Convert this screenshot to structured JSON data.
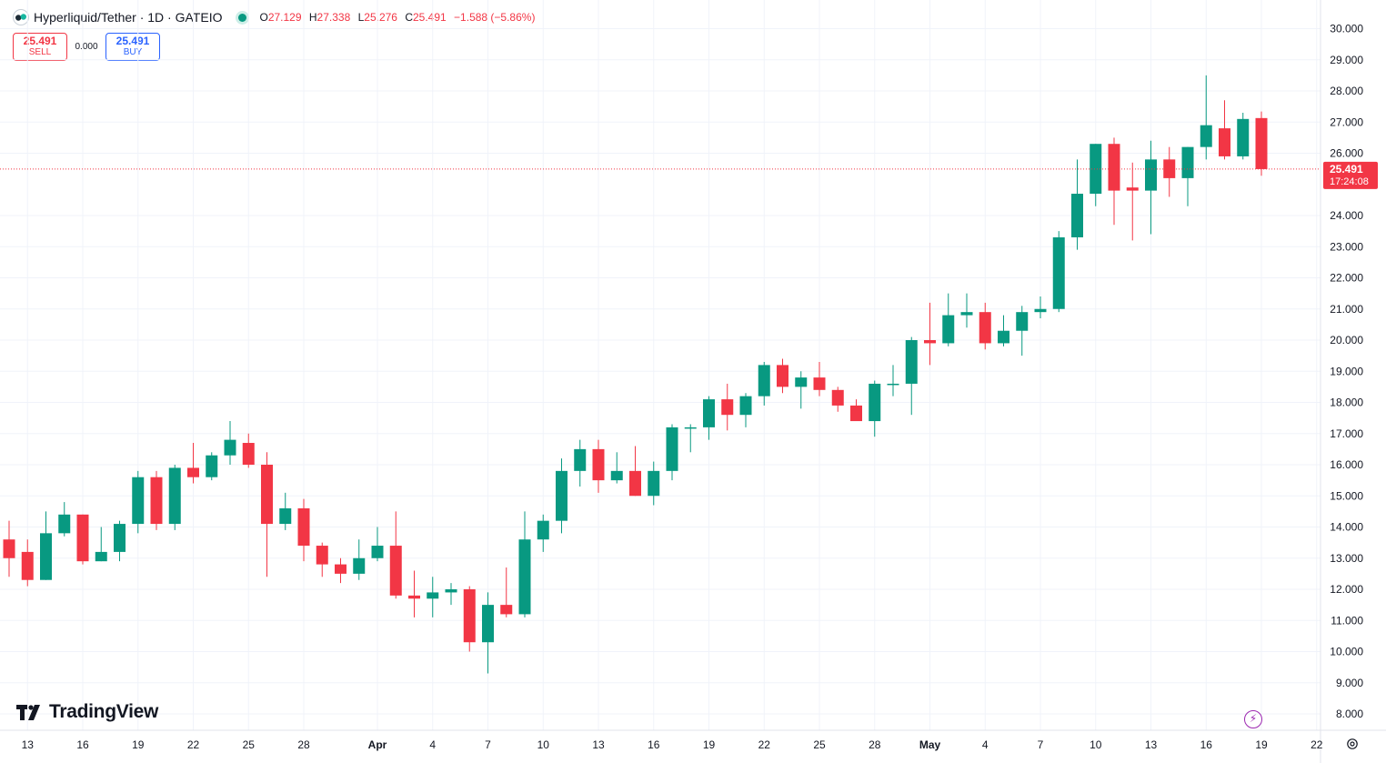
{
  "header": {
    "symbol_line": "Hyperliquid/Tether · 1D · GATEIO",
    "ohlc": [
      {
        "label": "O",
        "value": "27.129"
      },
      {
        "label": "H",
        "value": "27.338"
      },
      {
        "label": "L",
        "value": "25.276"
      },
      {
        "label": "C",
        "value": "25.491"
      }
    ],
    "change": "−1.588 (−5.86%)"
  },
  "trade": {
    "sell_price": "25.491",
    "sell_label": "SELL",
    "spread": "0.000",
    "buy_price": "25.491",
    "buy_label": "BUY"
  },
  "branding": {
    "name": "TradingView"
  },
  "colors": {
    "up": "#089981",
    "down": "#f23645",
    "grid": "#f0f3fa",
    "text": "#131722"
  },
  "chart_data": {
    "type": "candlestick",
    "title": "Hyperliquid/Tether · 1D · GATEIO",
    "ylim": [
      7.5,
      30.3
    ],
    "y_ticks": [
      "30.000",
      "29.000",
      "28.000",
      "27.000",
      "26.000",
      "24.000",
      "23.000",
      "22.000",
      "21.000",
      "20.000",
      "19.000",
      "18.000",
      "17.000",
      "16.000",
      "15.000",
      "14.000",
      "13.000",
      "12.000",
      "11.000",
      "10.000",
      "9.000",
      "8.000"
    ],
    "x_ticks": [
      "13",
      "16",
      "19",
      "22",
      "25",
      "28",
      "Apr",
      "4",
      "7",
      "10",
      "13",
      "16",
      "19",
      "22",
      "25",
      "28",
      "May",
      "4",
      "7",
      "10",
      "13",
      "16",
      "19",
      "22"
    ],
    "last_price": "25.491",
    "countdown": "17:24:08",
    "candles": [
      {
        "date": "Mar 12",
        "o": 13.6,
        "h": 14.2,
        "l": 12.4,
        "c": 13.0
      },
      {
        "date": "Mar 13",
        "o": 13.2,
        "h": 13.6,
        "l": 12.1,
        "c": 12.3
      },
      {
        "date": "Mar 14",
        "o": 12.3,
        "h": 14.5,
        "l": 12.3,
        "c": 13.8
      },
      {
        "date": "Mar 15",
        "o": 13.8,
        "h": 14.8,
        "l": 13.7,
        "c": 14.4
      },
      {
        "date": "Mar 16",
        "o": 14.4,
        "h": 14.4,
        "l": 12.8,
        "c": 12.9
      },
      {
        "date": "Mar 17",
        "o": 12.9,
        "h": 14.0,
        "l": 12.9,
        "c": 13.2
      },
      {
        "date": "Mar 18",
        "o": 13.2,
        "h": 14.2,
        "l": 12.9,
        "c": 14.1
      },
      {
        "date": "Mar 19",
        "o": 14.1,
        "h": 15.8,
        "l": 13.8,
        "c": 15.6
      },
      {
        "date": "Mar 20",
        "o": 15.6,
        "h": 15.8,
        "l": 13.9,
        "c": 14.1
      },
      {
        "date": "Mar 21",
        "o": 14.1,
        "h": 16.0,
        "l": 13.9,
        "c": 15.9
      },
      {
        "date": "Mar 22",
        "o": 15.9,
        "h": 16.7,
        "l": 15.4,
        "c": 15.6
      },
      {
        "date": "Mar 23",
        "o": 15.6,
        "h": 16.4,
        "l": 15.5,
        "c": 16.3
      },
      {
        "date": "Mar 24",
        "o": 16.3,
        "h": 17.4,
        "l": 16.0,
        "c": 16.8
      },
      {
        "date": "Mar 25",
        "o": 16.7,
        "h": 17.0,
        "l": 15.9,
        "c": 16.0
      },
      {
        "date": "Mar 26",
        "o": 16.0,
        "h": 16.4,
        "l": 12.4,
        "c": 14.1
      },
      {
        "date": "Mar 27",
        "o": 14.1,
        "h": 15.1,
        "l": 13.9,
        "c": 14.6
      },
      {
        "date": "Mar 28",
        "o": 14.6,
        "h": 14.9,
        "l": 12.9,
        "c": 13.4
      },
      {
        "date": "Mar 29",
        "o": 13.4,
        "h": 13.5,
        "l": 12.4,
        "c": 12.8
      },
      {
        "date": "Mar 30",
        "o": 12.8,
        "h": 13.0,
        "l": 12.2,
        "c": 12.5
      },
      {
        "date": "Mar 31",
        "o": 12.5,
        "h": 13.6,
        "l": 12.3,
        "c": 13.0
      },
      {
        "date": "Apr 1",
        "o": 13.0,
        "h": 14.0,
        "l": 12.9,
        "c": 13.4
      },
      {
        "date": "Apr 2",
        "o": 13.4,
        "h": 14.5,
        "l": 11.7,
        "c": 11.8
      },
      {
        "date": "Apr 3",
        "o": 11.8,
        "h": 12.6,
        "l": 11.1,
        "c": 11.7
      },
      {
        "date": "Apr 4",
        "o": 11.7,
        "h": 12.4,
        "l": 11.1,
        "c": 11.9
      },
      {
        "date": "Apr 5",
        "o": 11.9,
        "h": 12.2,
        "l": 11.5,
        "c": 12.0
      },
      {
        "date": "Apr 6",
        "o": 12.0,
        "h": 12.1,
        "l": 10.0,
        "c": 10.3
      },
      {
        "date": "Apr 7",
        "o": 10.3,
        "h": 11.9,
        "l": 9.3,
        "c": 11.5
      },
      {
        "date": "Apr 8",
        "o": 11.5,
        "h": 12.7,
        "l": 11.1,
        "c": 11.2
      },
      {
        "date": "Apr 9",
        "o": 11.2,
        "h": 14.5,
        "l": 11.1,
        "c": 13.6
      },
      {
        "date": "Apr 10",
        "o": 13.6,
        "h": 14.4,
        "l": 13.2,
        "c": 14.2
      },
      {
        "date": "Apr 11",
        "o": 14.2,
        "h": 16.2,
        "l": 13.8,
        "c": 15.8
      },
      {
        "date": "Apr 12",
        "o": 15.8,
        "h": 16.8,
        "l": 15.3,
        "c": 16.5
      },
      {
        "date": "Apr 13",
        "o": 16.5,
        "h": 16.8,
        "l": 15.1,
        "c": 15.5
      },
      {
        "date": "Apr 14",
        "o": 15.5,
        "h": 16.4,
        "l": 15.4,
        "c": 15.8
      },
      {
        "date": "Apr 15",
        "o": 15.8,
        "h": 16.6,
        "l": 15.0,
        "c": 15.0
      },
      {
        "date": "Apr 16",
        "o": 15.0,
        "h": 16.1,
        "l": 14.7,
        "c": 15.8
      },
      {
        "date": "Apr 17",
        "o": 15.8,
        "h": 17.3,
        "l": 15.5,
        "c": 17.2
      },
      {
        "date": "Apr 18",
        "o": 17.2,
        "h": 17.3,
        "l": 16.4,
        "c": 17.2
      },
      {
        "date": "Apr 19",
        "o": 17.2,
        "h": 18.2,
        "l": 16.8,
        "c": 18.1
      },
      {
        "date": "Apr 20",
        "o": 18.1,
        "h": 18.6,
        "l": 17.1,
        "c": 17.6
      },
      {
        "date": "Apr 21",
        "o": 17.6,
        "h": 18.3,
        "l": 17.2,
        "c": 18.2
      },
      {
        "date": "Apr 22",
        "o": 18.2,
        "h": 19.3,
        "l": 17.9,
        "c": 19.2
      },
      {
        "date": "Apr 23",
        "o": 19.2,
        "h": 19.4,
        "l": 18.3,
        "c": 18.5
      },
      {
        "date": "Apr 24",
        "o": 18.5,
        "h": 19.0,
        "l": 17.8,
        "c": 18.8
      },
      {
        "date": "Apr 25",
        "o": 18.8,
        "h": 19.3,
        "l": 18.2,
        "c": 18.4
      },
      {
        "date": "Apr 26",
        "o": 18.4,
        "h": 18.5,
        "l": 17.7,
        "c": 17.9
      },
      {
        "date": "Apr 27",
        "o": 17.9,
        "h": 18.1,
        "l": 17.4,
        "c": 17.4
      },
      {
        "date": "Apr 28",
        "o": 17.4,
        "h": 18.7,
        "l": 16.9,
        "c": 18.6
      },
      {
        "date": "Apr 29",
        "o": 18.6,
        "h": 19.2,
        "l": 18.2,
        "c": 18.6
      },
      {
        "date": "Apr 30",
        "o": 18.6,
        "h": 20.1,
        "l": 17.6,
        "c": 20.0
      },
      {
        "date": "May 1",
        "o": 20.0,
        "h": 21.2,
        "l": 19.2,
        "c": 19.9
      },
      {
        "date": "May 2",
        "o": 19.9,
        "h": 21.5,
        "l": 19.8,
        "c": 20.8
      },
      {
        "date": "May 3",
        "o": 20.8,
        "h": 21.5,
        "l": 20.4,
        "c": 20.9
      },
      {
        "date": "May 4",
        "o": 20.9,
        "h": 21.2,
        "l": 19.7,
        "c": 19.9
      },
      {
        "date": "May 5",
        "o": 19.9,
        "h": 20.8,
        "l": 19.8,
        "c": 20.3
      },
      {
        "date": "May 6",
        "o": 20.3,
        "h": 21.1,
        "l": 19.5,
        "c": 20.9
      },
      {
        "date": "May 7",
        "o": 20.9,
        "h": 21.4,
        "l": 20.7,
        "c": 21.0
      },
      {
        "date": "May 8",
        "o": 21.0,
        "h": 23.5,
        "l": 20.9,
        "c": 23.3
      },
      {
        "date": "May 9",
        "o": 23.3,
        "h": 25.8,
        "l": 22.9,
        "c": 24.7
      },
      {
        "date": "May 10",
        "o": 24.7,
        "h": 26.3,
        "l": 24.3,
        "c": 26.3
      },
      {
        "date": "May 11",
        "o": 26.3,
        "h": 26.5,
        "l": 23.7,
        "c": 24.8
      },
      {
        "date": "May 12",
        "o": 24.9,
        "h": 25.7,
        "l": 23.2,
        "c": 24.8
      },
      {
        "date": "May 13",
        "o": 24.8,
        "h": 26.4,
        "l": 23.4,
        "c": 25.8
      },
      {
        "date": "May 14",
        "o": 25.8,
        "h": 26.2,
        "l": 24.6,
        "c": 25.2
      },
      {
        "date": "May 15",
        "o": 25.2,
        "h": 26.2,
        "l": 24.3,
        "c": 26.2
      },
      {
        "date": "May 16",
        "o": 26.2,
        "h": 28.5,
        "l": 25.8,
        "c": 26.9
      },
      {
        "date": "May 17",
        "o": 26.8,
        "h": 27.7,
        "l": 25.8,
        "c": 25.9
      },
      {
        "date": "May 18",
        "o": 25.9,
        "h": 27.3,
        "l": 25.8,
        "c": 27.1
      },
      {
        "date": "May 19",
        "o": 27.129,
        "h": 27.338,
        "l": 25.276,
        "c": 25.491
      }
    ]
  }
}
